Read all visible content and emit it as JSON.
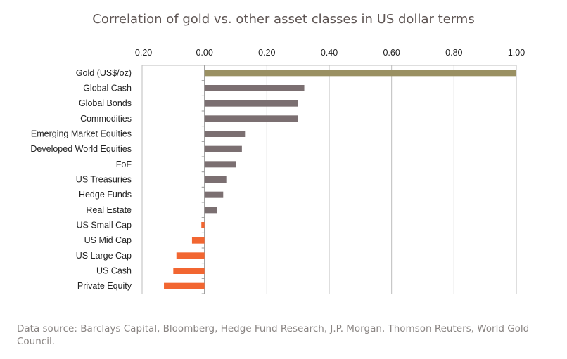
{
  "chart_data": {
    "type": "bar",
    "orientation": "horizontal",
    "title": "Correlation of gold vs. other asset classes in US dollar terms",
    "xlabel": "",
    "ylabel": "",
    "xlim": [
      -0.2,
      1.0
    ],
    "x_ticks": [
      "-0.20",
      "0.00",
      "0.20",
      "0.40",
      "0.60",
      "0.80",
      "1.00"
    ],
    "x_axis_position": "top",
    "grid": true,
    "categories": [
      "Gold (US$/oz)",
      "Global Cash",
      "Global Bonds",
      "Commodities",
      "Emerging Market Equities",
      "Developed World Equities",
      "FoF",
      "US Treasuries",
      "Hedge Funds",
      "Real Estate",
      "US Small Cap",
      "US Mid Cap",
      "US Large Cap",
      "US Cash",
      "Private Equity"
    ],
    "values": [
      1.0,
      0.32,
      0.3,
      0.3,
      0.13,
      0.12,
      0.1,
      0.07,
      0.06,
      0.04,
      -0.01,
      -0.04,
      -0.09,
      -0.1,
      -0.13
    ],
    "colors": {
      "gold": "#9a9062",
      "positive": "#7b6f71",
      "negative": "#f26631"
    }
  },
  "source": "Data source: Barclays Capital, Bloomberg, Hedge Fund Research, J.P. Morgan, Thomson Reuters, World Gold Council."
}
